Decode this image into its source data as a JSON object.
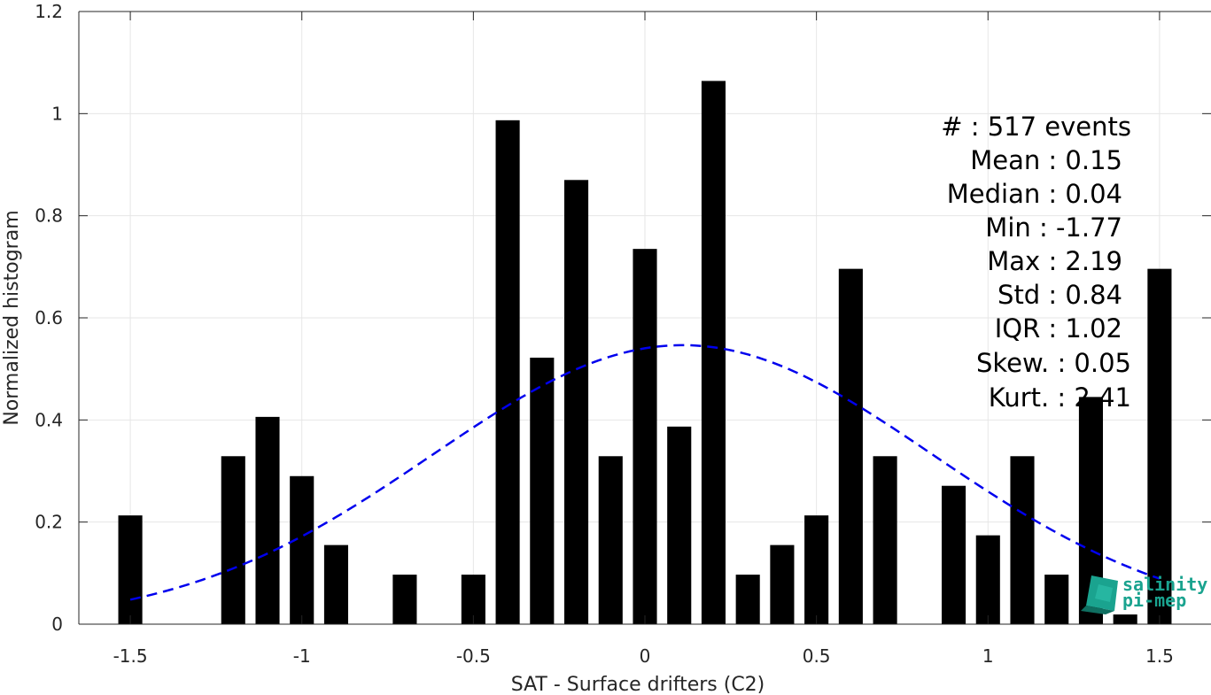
{
  "chart_data": {
    "type": "bar",
    "xlabel": "SAT - Surface drifters (C2)",
    "ylabel": "Normalized histogram",
    "xlim": [
      -1.65,
      1.65
    ],
    "ylim": [
      0,
      1.2
    ],
    "x_ticks": [
      -1.5,
      -1,
      -0.5,
      0,
      0.5,
      1,
      1.5
    ],
    "x_tick_labels": [
      "-1.5",
      "-1",
      "-0.5",
      "0",
      "0.5",
      "1",
      "1.5"
    ],
    "y_ticks": [
      0,
      0.2,
      0.4,
      0.6,
      0.8,
      1,
      1.2
    ],
    "y_tick_labels": [
      "0",
      "0.2",
      "0.4",
      "0.6",
      "0.8",
      "1",
      "1.2"
    ],
    "grid": true,
    "bar_color": "#000000",
    "bar_width": 0.07,
    "bars": [
      {
        "x": -1.5,
        "y": 0.213
      },
      {
        "x": -1.2,
        "y": 0.329
      },
      {
        "x": -1.1,
        "y": 0.406
      },
      {
        "x": -1.0,
        "y": 0.29
      },
      {
        "x": -0.9,
        "y": 0.155
      },
      {
        "x": -0.7,
        "y": 0.097
      },
      {
        "x": -0.5,
        "y": 0.097
      },
      {
        "x": -0.4,
        "y": 0.987
      },
      {
        "x": -0.3,
        "y": 0.522
      },
      {
        "x": -0.2,
        "y": 0.87
      },
      {
        "x": -0.1,
        "y": 0.329
      },
      {
        "x": 0.0,
        "y": 0.735
      },
      {
        "x": 0.1,
        "y": 0.387
      },
      {
        "x": 0.2,
        "y": 1.064
      },
      {
        "x": 0.3,
        "y": 0.097
      },
      {
        "x": 0.4,
        "y": 0.155
      },
      {
        "x": 0.5,
        "y": 0.213
      },
      {
        "x": 0.6,
        "y": 0.696
      },
      {
        "x": 0.7,
        "y": 0.329
      },
      {
        "x": 0.9,
        "y": 0.271
      },
      {
        "x": 1.0,
        "y": 0.174
      },
      {
        "x": 1.1,
        "y": 0.329
      },
      {
        "x": 1.2,
        "y": 0.097
      },
      {
        "x": 1.3,
        "y": 0.445
      },
      {
        "x": 1.4,
        "y": 0.019
      },
      {
        "x": 1.5,
        "y": 0.696
      }
    ],
    "fit_curve": {
      "style": "dashed",
      "color": "#0000ee",
      "mean": 0.11,
      "std": 0.73,
      "x_range": [
        -1.5,
        1.5
      ]
    },
    "stats": [
      {
        "label": "#  : 517 events"
      },
      {
        "label": "Mean : 0.15"
      },
      {
        "label": "Median : 0.04"
      },
      {
        "label": "Min : -1.77"
      },
      {
        "label": "Max : 2.19"
      },
      {
        "label": "Std : 0.84"
      },
      {
        "label": "IQR : 1.02"
      },
      {
        "label": "Skew. : 0.05"
      },
      {
        "label": "Kurt. : 2.41"
      }
    ]
  },
  "logo": {
    "line1": "salinity",
    "line2": "pi-mep",
    "color": "#1aa38f"
  }
}
